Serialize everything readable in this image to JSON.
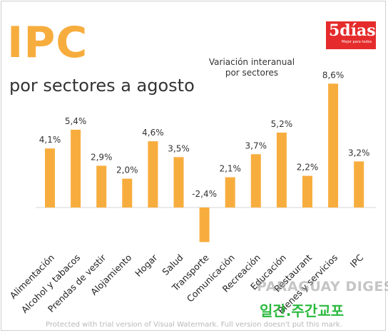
{
  "header": {
    "title": "IPC",
    "subtitle": "por sectores a agosto",
    "legend_line1": "Variación interanual",
    "legend_line2": "por sectores"
  },
  "logo": {
    "text": "5días",
    "tagline": "Mejor para todos"
  },
  "chart_data": {
    "type": "bar",
    "title": "IPC",
    "subtitle": "por sectores a agosto",
    "categories": [
      "Alimentación",
      "Alcohol y tabacos",
      "Prendas de vestir",
      "Alojamiento",
      "Hogar",
      "Salud",
      "Transporte",
      "Comunicación",
      "Recreación",
      "Educación",
      "Restaurant",
      "Bienes y servicios",
      "IPC"
    ],
    "values": [
      4.1,
      5.4,
      2.9,
      2.0,
      4.6,
      3.5,
      -2.4,
      2.1,
      3.7,
      5.2,
      2.2,
      8.6,
      3.2
    ],
    "value_labels": [
      "4,1%",
      "5,4%",
      "2,9%",
      "2,0%",
      "4,6%",
      "3,5%",
      "-2,4%",
      "2,1%",
      "3,7%",
      "5,2%",
      "2,2%",
      "8,6%",
      "3,2%"
    ],
    "series": [
      {
        "values": [
          4.1,
          5.4,
          2.9,
          2.0,
          4.6,
          3.5,
          -2.4,
          2.1,
          3.7,
          5.2,
          2.2,
          8.6,
          3.2
        ]
      }
    ],
    "bar_color": "#f7ad3e",
    "grid": false,
    "ylim": [
      -2.4,
      8.6
    ]
  },
  "watermarks": {
    "line1": "PARAGUAY DIGEST",
    "line2": "일간.주간교포",
    "trial": "Protected with trial version of Visual Watermark. Full version doesn't put this mark."
  }
}
